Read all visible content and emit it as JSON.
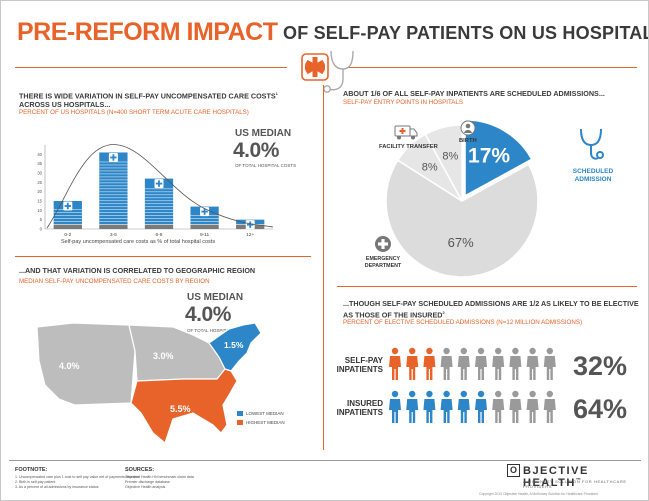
{
  "header": {
    "title_main": "PRE-REFORM IMPACT",
    "title_sub": "OF SELF-PAY PATIENTS ON US HOSPITALS",
    "accent": "#e8632a",
    "blue": "#2d86c8"
  },
  "panel1": {
    "title_line1": "THERE IS WIDE VARIATION IN SELF-PAY UNCOMPENSATED CARE COSTS",
    "title_sup": "1",
    "title_line2": "ACROSS US HOSPITALS...",
    "subtitle": "PERCENT OF US HOSPITALS (N=400 SHORT TERM ACUTE CARE HOSPITALS)",
    "median_label": "US MEDIAN",
    "median_value": "4.0%",
    "median_note": "OF TOTAL HOSPITAL COSTS",
    "axis_label": "Self-pay uncompensated care costs as % of total hospital costs"
  },
  "panel2": {
    "title": "...AND THAT VARIATION IS CORRELATED TO GEOGRAPHIC REGION",
    "subtitle": "MEDIAN SELF-PAY UNCOMPENSATED CARE COSTS BY REGION",
    "median_label": "US MEDIAN",
    "median_value": "4.0%",
    "median_note": "OF TOTAL HOSPITAL COSTS",
    "regions": [
      {
        "name": "west",
        "value": "4.0%",
        "color": "#bdbdbd"
      },
      {
        "name": "midwest",
        "value": "3.0%",
        "color": "#bdbdbd"
      },
      {
        "name": "northeast",
        "value": "1.5%",
        "color": "#2d86c8"
      },
      {
        "name": "south",
        "value": "5.5%",
        "color": "#e8632a"
      }
    ],
    "legend": [
      {
        "label": "LOWEST MEDIAN",
        "color": "#2d86c8"
      },
      {
        "label": "HIGHEST MEDIAN",
        "color": "#e8632a"
      }
    ]
  },
  "panel3": {
    "title": "ABOUT 1/6 OF ALL SELF-PAY INPATIENTS ARE SCHEDULED ADMISSIONS...",
    "subtitle": "SELF-PAY ENTRY POINTS IN HOSPITALS",
    "labels": {
      "transfer": "FACILITY TRANSFER",
      "birth": "BIRTH",
      "scheduled": "SCHEDULED ADMISSION",
      "emergency": "EMERGENCY DEPARTMENT"
    }
  },
  "panel4": {
    "title_line1": "...THOUGH SELF-PAY SCHEDULED ADMISSIONS ARE 1/2 AS LIKELY TO BE ELECTIVE",
    "title_line2": "AS THOSE OF THE INSURED",
    "title_sup": "2",
    "subtitle": "PERCENT OF ELECTIVE SCHEDULED ADMISSIONS (N=12 MILLION ADMISSIONS)",
    "rows": [
      {
        "label_line1": "SELF-PAY",
        "label_line2": "INPATIENTS",
        "value": "32%",
        "highlighted": 3,
        "total": 10,
        "color": "#e8632a"
      },
      {
        "label_line1": "INSURED",
        "label_line2": "INPATIENTS",
        "value": "64%",
        "highlighted": 6,
        "total": 10,
        "color": "#2d86c8"
      }
    ]
  },
  "footer": {
    "footnote_title": "FOOTNOTE:",
    "footnotes": [
      "1. Uncompensated care plus 1 cost to self pay value net of payments received",
      "2. Birth is self-pay patient",
      "3. As a percent of all admissions by insurance status"
    ],
    "sources_title": "SOURCES:",
    "sources": [
      "Objective Health HN benchmark claim data",
      "Premier discharge database",
      "Objective Health analysis"
    ],
    "brand_prefix": "O",
    "brand": "BJECTIVE HEALTH",
    "brand_tm": "™",
    "brand_sub": "A MCKINSEY SOLUTION FOR HEALTHCARE PROVIDERS",
    "copyright": "Copyright 2013 Objective Health, A McKinsey Solution for Healthcare Providers"
  },
  "chart_data": [
    {
      "type": "bar",
      "title": "PERCENT OF US HOSPITALS (N=400 SHORT TERM ACUTE CARE HOSPITALS)",
      "xlabel": "Self-pay uncompensated care costs as % of total hospital costs",
      "ylabel": "",
      "categories": [
        "0-2",
        "3-5",
        "6-8",
        "9-11",
        "12+"
      ],
      "values": [
        15,
        41,
        27,
        12,
        5
      ],
      "ylim": [
        0,
        45
      ],
      "yticks": [
        0,
        5,
        10,
        15,
        20,
        25,
        30,
        35,
        40
      ],
      "grid": false
    },
    {
      "type": "pie",
      "title": "SELF-PAY ENTRY POINTS IN HOSPITALS",
      "categories": [
        "SCHEDULED ADMISSION",
        "EMERGENCY DEPARTMENT",
        "FACILITY TRANSFER",
        "BIRTH"
      ],
      "values": [
        17,
        67,
        8,
        8
      ],
      "labels": [
        "17%",
        "67%",
        "8%",
        "8%"
      ],
      "colors": [
        "#2d86c8",
        "#dcdcdc",
        "#e6e6e6",
        "#e6e6e6"
      ]
    },
    {
      "type": "bar",
      "title": "PERCENT OF ELECTIVE SCHEDULED ADMISSIONS (N=12 MILLION ADMISSIONS)",
      "categories": [
        "SELF-PAY INPATIENTS",
        "INSURED INPATIENTS"
      ],
      "values": [
        32,
        64
      ],
      "labels": [
        "32%",
        "64%"
      ]
    }
  ]
}
